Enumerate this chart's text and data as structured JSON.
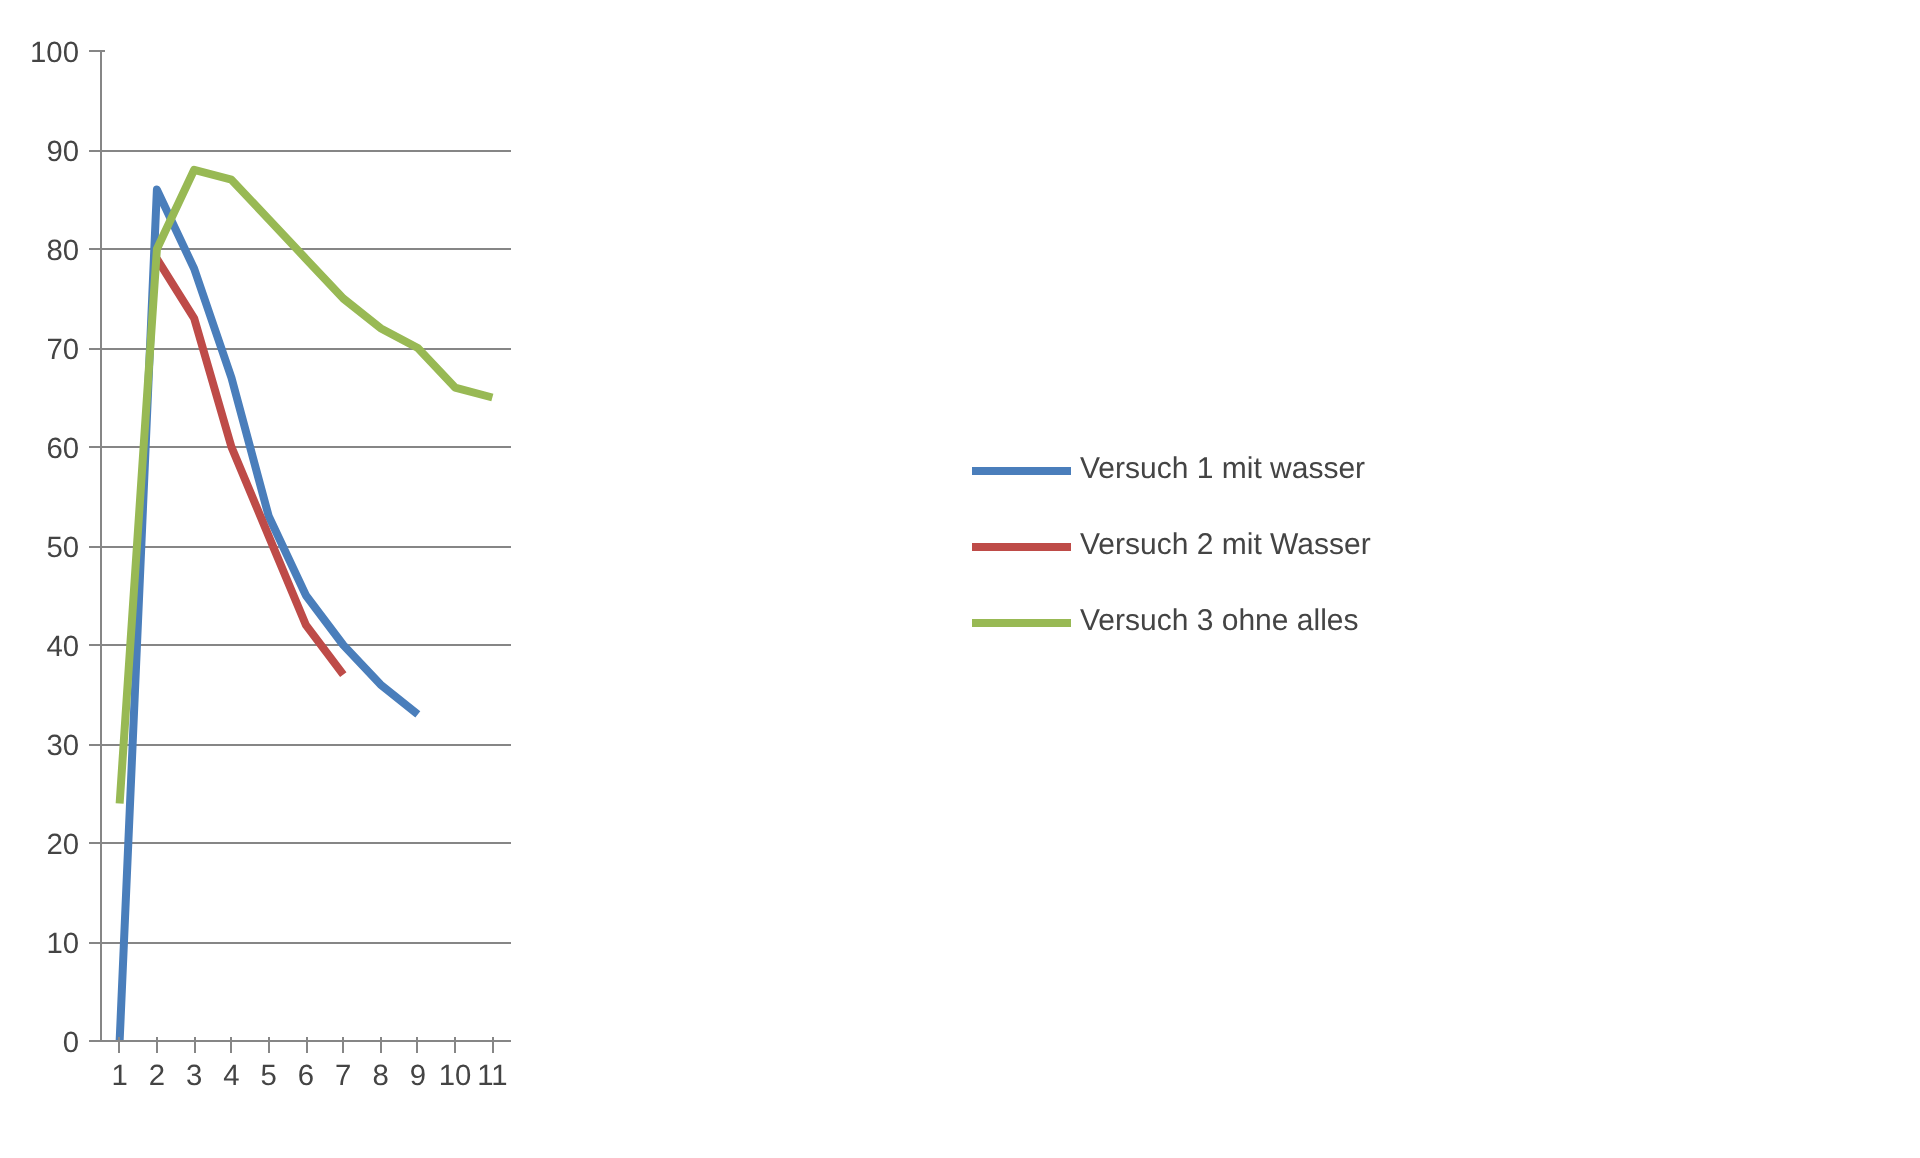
{
  "chart_data": {
    "type": "line",
    "categories": [
      "1",
      "2",
      "3",
      "4",
      "5",
      "6",
      "7",
      "8",
      "9",
      "10",
      "11"
    ],
    "series": [
      {
        "name": "Versuch 1 mit wasser",
        "color": "#4a7ebb",
        "values": [
          0,
          86,
          78,
          67,
          53,
          45,
          40,
          36,
          33,
          null,
          null
        ]
      },
      {
        "name": "Versuch 2 mit Wasser",
        "color": "#be4b48",
        "values": [
          null,
          79,
          73,
          60,
          51,
          42,
          37,
          null,
          null,
          null,
          null
        ]
      },
      {
        "name": "Versuch 3 ohne alles",
        "color": "#98b954",
        "values": [
          24,
          80,
          88,
          87,
          83,
          79,
          75,
          72,
          70,
          66,
          65
        ]
      }
    ],
    "ylim": [
      0,
      100
    ],
    "yticks": [
      0,
      10,
      20,
      30,
      40,
      50,
      60,
      70,
      80,
      90,
      100
    ],
    "grid": "y",
    "legend": "right",
    "marker": "none",
    "line_style": "solid"
  }
}
